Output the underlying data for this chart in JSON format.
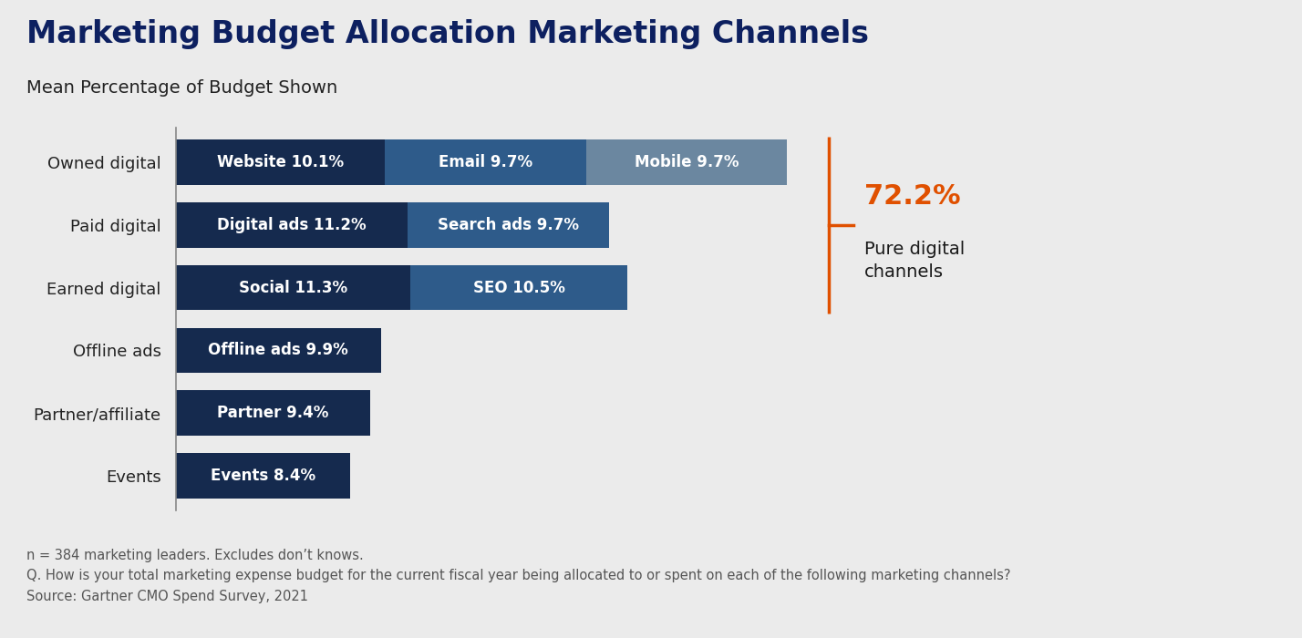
{
  "title": "Marketing Budget Allocation Marketing Channels",
  "subtitle": "Mean Percentage of Budget Shown",
  "background_color": "#ebebeb",
  "categories": [
    "Owned digital",
    "Paid digital",
    "Earned digital",
    "Offline ads",
    "Partner/affiliate",
    "Events"
  ],
  "bars": [
    [
      {
        "label": "Website 10.1%",
        "value": 10.1,
        "color": "#152a4e"
      },
      {
        "label": "Email 9.7%",
        "value": 9.7,
        "color": "#2e5b8a"
      },
      {
        "label": "Mobile 9.7%",
        "value": 9.7,
        "color": "#6b87a0"
      }
    ],
    [
      {
        "label": "Digital ads 11.2%",
        "value": 11.2,
        "color": "#152a4e"
      },
      {
        "label": "Search ads 9.7%",
        "value": 9.7,
        "color": "#2e5b8a"
      }
    ],
    [
      {
        "label": "Social 11.3%",
        "value": 11.3,
        "color": "#152a4e"
      },
      {
        "label": "SEO 10.5%",
        "value": 10.5,
        "color": "#2e5b8a"
      }
    ],
    [
      {
        "label": "Offline ads 9.9%",
        "value": 9.9,
        "color": "#152a4e"
      }
    ],
    [
      {
        "label": "Partner 9.4%",
        "value": 9.4,
        "color": "#152a4e"
      }
    ],
    [
      {
        "label": "Events 8.4%",
        "value": 8.4,
        "color": "#152a4e"
      }
    ]
  ],
  "annotation_value": "72.2%",
  "annotation_label": "Pure digital\nchannels",
  "annotation_color": "#e05000",
  "annotation_label_color": "#1a1a1a",
  "footnote_lines": [
    "n = 384 marketing leaders. Excludes don’t knows.",
    "Q. How is your total marketing expense budget for the current fiscal year being allocated to or spent on each of the following marketing channels?",
    "Source: Gartner CMO Spend Survey, 2021"
  ],
  "bar_height": 0.72,
  "bar_label_fontsize": 12,
  "category_fontsize": 13,
  "title_fontsize": 24,
  "subtitle_fontsize": 14,
  "footnote_fontsize": 10.5,
  "title_color": "#0d2060",
  "subtitle_color": "#222222",
  "footnote_color": "#555555"
}
